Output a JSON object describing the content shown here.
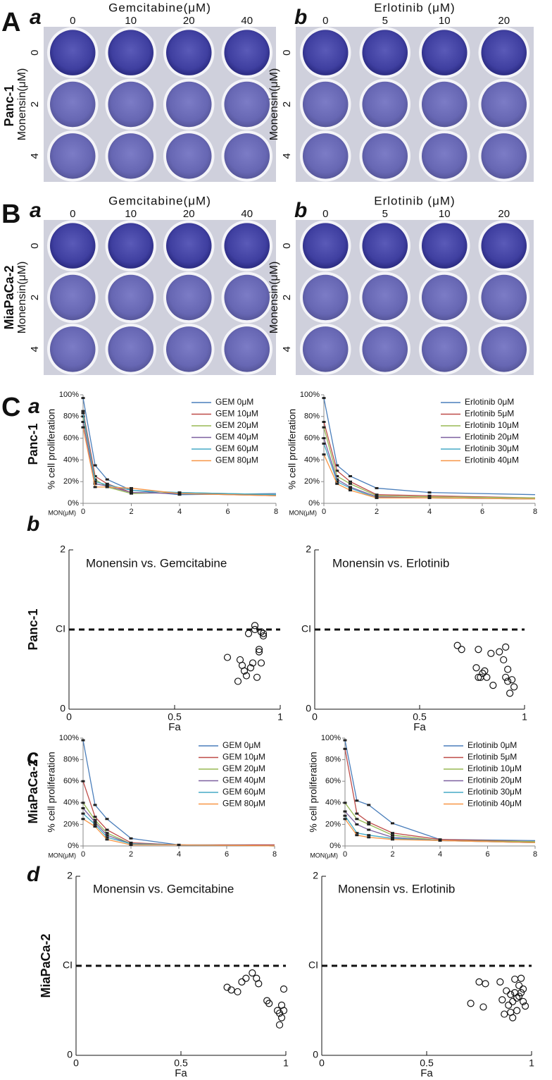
{
  "panel_labels": [
    "A",
    "a",
    "b",
    "B",
    "a",
    "b",
    "C",
    "a",
    "b",
    "c",
    "d"
  ],
  "cell_lines": [
    "Panc-1",
    "MiaPaCa-2",
    "Panc-1",
    "Panc-1",
    "MiaPaCa-2",
    "MiaPaCa-2"
  ],
  "plates": [
    {
      "title": "Gemcitabine(μM)",
      "columns": [
        "0",
        "10",
        "20",
        "40"
      ],
      "row_label": "Monensin(μM)",
      "rows": [
        "0",
        "2",
        "4"
      ]
    },
    {
      "title": "Erlotinib (μM)",
      "columns": [
        "0",
        "5",
        "10",
        "20"
      ],
      "row_label": "Monensin(μM)",
      "rows": [
        "0",
        "2",
        "4"
      ]
    },
    {
      "title": "Gemcitabine(μM)",
      "columns": [
        "0",
        "10",
        "20",
        "40"
      ],
      "row_label": "Monensin(μM)",
      "rows": [
        "0",
        "2",
        "4"
      ]
    },
    {
      "title": "Erlotinib (μM)",
      "columns": [
        "0",
        "5",
        "10",
        "20"
      ],
      "row_label": "Monensin(μM)",
      "rows": [
        "0",
        "2",
        "4"
      ]
    }
  ],
  "chart_data": [
    {
      "type": "line",
      "ylabel": "% cell proliferation",
      "xlabel": "MON(μM)",
      "x": [
        0,
        0.5,
        1,
        2,
        4,
        8
      ],
      "xlim": [
        0,
        8
      ],
      "xticks": [
        0,
        2,
        4,
        6,
        8
      ],
      "ylim": [
        0,
        100
      ],
      "yticks": [
        {
          "value": 0,
          "label": "0%"
        },
        {
          "value": 20,
          "label": "20%"
        },
        {
          "value": 40,
          "label": "40%"
        },
        {
          "value": 60,
          "label": "60%"
        },
        {
          "value": 80,
          "label": "80%"
        },
        {
          "value": 100,
          "label": "100%"
        }
      ],
      "series": [
        {
          "name": "GEM 0μM",
          "color": "#4a7ebb",
          "values": [
            97,
            35,
            22,
            12,
            8,
            9
          ]
        },
        {
          "name": "GEM 10μM",
          "color": "#be4b48",
          "values": [
            85,
            25,
            18,
            10,
            9,
            8
          ]
        },
        {
          "name": "GEM 20μM",
          "color": "#98b954",
          "values": [
            80,
            22,
            15,
            9,
            10,
            8
          ]
        },
        {
          "name": "GEM 40μM",
          "color": "#7d60a0",
          "values": [
            75,
            18,
            16,
            10,
            9,
            7
          ]
        },
        {
          "name": "GEM 60μM",
          "color": "#46aac5",
          "values": [
            83,
            20,
            17,
            12,
            10,
            8
          ]
        },
        {
          "name": "GEM 80μM",
          "color": "#f79646",
          "values": [
            70,
            15,
            15,
            14,
            9,
            7
          ]
        }
      ]
    },
    {
      "type": "line",
      "ylabel": "% cell proliferation",
      "xlabel": "MON(μM)",
      "x": [
        0,
        0.5,
        1,
        2,
        4,
        8
      ],
      "xlim": [
        0,
        8
      ],
      "xticks": [
        0,
        2,
        4,
        6,
        8
      ],
      "ylim": [
        0,
        100
      ],
      "yticks": [
        {
          "value": 0,
          "label": "0%"
        },
        {
          "value": 20,
          "label": "20%"
        },
        {
          "value": 40,
          "label": "40%"
        },
        {
          "value": 60,
          "label": "60%"
        },
        {
          "value": 80,
          "label": "80%"
        },
        {
          "value": 100,
          "label": "100%"
        }
      ],
      "series": [
        {
          "name": "Erlotinib 0μM",
          "color": "#4a7ebb",
          "values": [
            97,
            35,
            25,
            14,
            10,
            8
          ]
        },
        {
          "name": "Erlotinib 5μM",
          "color": "#be4b48",
          "values": [
            75,
            30,
            20,
            8,
            7,
            5
          ]
        },
        {
          "name": "Erlotinib 10μM",
          "color": "#98b954",
          "values": [
            70,
            25,
            18,
            7,
            6,
            5
          ]
        },
        {
          "name": "Erlotinib 20μM",
          "color": "#7d60a0",
          "values": [
            60,
            22,
            15,
            6,
            5,
            4
          ]
        },
        {
          "name": "Erlotinib 30μM",
          "color": "#46aac5",
          "values": [
            55,
            20,
            14,
            5,
            5,
            4
          ]
        },
        {
          "name": "Erlotinib 40μM",
          "color": "#f79646",
          "values": [
            45,
            18,
            12,
            5,
            5,
            4
          ]
        }
      ]
    },
    {
      "type": "scatter",
      "title": "Monensin vs. Gemcitabine",
      "xlabel": "Fa",
      "xlim": [
        0,
        1
      ],
      "xticks": [
        0,
        0.5,
        1
      ],
      "ylim": [
        0,
        2
      ],
      "yticks": [
        0,
        {
          "value": 1,
          "label": "CI"
        },
        2
      ],
      "hline": 1,
      "x": [
        0.75,
        0.8,
        0.81,
        0.82,
        0.83,
        0.84,
        0.85,
        0.86,
        0.87,
        0.88,
        0.88,
        0.89,
        0.9,
        0.9,
        0.91,
        0.91,
        0.92,
        0.92
      ],
      "values": [
        0.65,
        0.35,
        0.62,
        0.55,
        0.48,
        0.42,
        0.95,
        0.52,
        0.58,
        1.05,
        1.0,
        0.4,
        0.72,
        0.75,
        0.58,
        0.97,
        0.92,
        0.95
      ]
    },
    {
      "type": "scatter",
      "title": "Monensin vs. Erlotinib",
      "xlabel": "Fa",
      "xlim": [
        0,
        1
      ],
      "xticks": [
        0,
        0.5,
        1
      ],
      "ylim": [
        0,
        2
      ],
      "yticks": [
        0,
        {
          "value": 1,
          "label": "CI"
        },
        2
      ],
      "hline": 1,
      "x": [
        0.68,
        0.7,
        0.77,
        0.78,
        0.78,
        0.79,
        0.8,
        0.81,
        0.82,
        0.84,
        0.85,
        0.88,
        0.9,
        0.91,
        0.91,
        0.92,
        0.92,
        0.93,
        0.94,
        0.95
      ],
      "values": [
        0.8,
        0.75,
        0.52,
        0.4,
        0.75,
        0.4,
        0.45,
        0.48,
        0.4,
        0.7,
        0.3,
        0.72,
        0.62,
        0.4,
        0.78,
        0.35,
        0.5,
        0.2,
        0.37,
        0.28
      ]
    },
    {
      "type": "line",
      "ylabel": "% cell proliferation",
      "xlabel": "MON(μM)",
      "x": [
        0,
        0.5,
        1,
        2,
        4,
        8
      ],
      "xlim": [
        0,
        8
      ],
      "xticks": [
        0,
        2,
        4,
        6,
        8
      ],
      "ylim": [
        0,
        100
      ],
      "yticks": [
        {
          "value": 0,
          "label": "0%"
        },
        {
          "value": 20,
          "label": "20%"
        },
        {
          "value": 40,
          "label": "40%"
        },
        {
          "value": 60,
          "label": "60%"
        },
        {
          "value": 80,
          "label": "80%"
        },
        {
          "value": 100,
          "label": "100%"
        }
      ],
      "series": [
        {
          "name": "GEM 0μM",
          "color": "#4a7ebb",
          "values": [
            98,
            38,
            25,
            7,
            1,
            1
          ]
        },
        {
          "name": "GEM 10μM",
          "color": "#be4b48",
          "values": [
            60,
            27,
            15,
            3,
            1,
            1
          ]
        },
        {
          "name": "GEM 20μM",
          "color": "#98b954",
          "values": [
            40,
            24,
            12,
            2,
            1,
            0
          ]
        },
        {
          "name": "GEM 40μM",
          "color": "#7d60a0",
          "values": [
            35,
            22,
            10,
            2,
            1,
            0
          ]
        },
        {
          "name": "GEM 60μM",
          "color": "#46aac5",
          "values": [
            30,
            20,
            8,
            2,
            1,
            0
          ]
        },
        {
          "name": "GEM 80μM",
          "color": "#f79646",
          "values": [
            25,
            18,
            6,
            1,
            1,
            0
          ]
        }
      ]
    },
    {
      "type": "line",
      "ylabel": "% cell proliferation",
      "xlabel": "MON(μM)",
      "x": [
        0,
        0.5,
        1,
        2,
        4,
        8
      ],
      "xlim": [
        0,
        8
      ],
      "xticks": [
        0,
        2,
        4,
        6,
        8
      ],
      "ylim": [
        0,
        100
      ],
      "yticks": [
        {
          "value": 0,
          "label": "0%"
        },
        {
          "value": 20,
          "label": "20%"
        },
        {
          "value": 40,
          "label": "40%"
        },
        {
          "value": 60,
          "label": "60%"
        },
        {
          "value": 80,
          "label": "80%"
        },
        {
          "value": 100,
          "label": "100%"
        }
      ],
      "series": [
        {
          "name": "Erlotinib 0μM",
          "color": "#4a7ebb",
          "values": [
            98,
            42,
            38,
            21,
            6,
            5
          ]
        },
        {
          "name": "Erlotinib 5μM",
          "color": "#be4b48",
          "values": [
            90,
            30,
            22,
            12,
            6,
            4
          ]
        },
        {
          "name": "Erlotinib 10μM",
          "color": "#98b954",
          "values": [
            40,
            25,
            20,
            10,
            5,
            4
          ]
        },
        {
          "name": "Erlotinib 20μM",
          "color": "#7d60a0",
          "values": [
            32,
            20,
            15,
            8,
            5,
            3
          ]
        },
        {
          "name": "Erlotinib 30μM",
          "color": "#46aac5",
          "values": [
            28,
            12,
            10,
            7,
            5,
            3
          ]
        },
        {
          "name": "Erlotinib 40μM",
          "color": "#f79646",
          "values": [
            25,
            10,
            8,
            6,
            5,
            3
          ]
        }
      ]
    },
    {
      "type": "scatter",
      "title": "Monensin vs. Gemcitabine",
      "xlabel": "Fa",
      "xlim": [
        0,
        1
      ],
      "xticks": [
        0,
        0.5,
        1
      ],
      "ylim": [
        0,
        2
      ],
      "yticks": [
        0,
        {
          "value": 1,
          "label": "CI"
        },
        2
      ],
      "hline": 1,
      "x": [
        0.72,
        0.74,
        0.77,
        0.79,
        0.81,
        0.84,
        0.86,
        0.87,
        0.91,
        0.92,
        0.96,
        0.97,
        0.97,
        0.98,
        0.98,
        0.99,
        0.99
      ],
      "values": [
        0.76,
        0.73,
        0.71,
        0.82,
        0.86,
        0.92,
        0.86,
        0.8,
        0.61,
        0.58,
        0.5,
        0.47,
        0.34,
        0.42,
        0.56,
        0.74,
        0.5
      ]
    },
    {
      "type": "scatter",
      "title": "Monensin vs. Erlotinib",
      "xlabel": "Fa",
      "xlim": [
        0,
        1
      ],
      "xticks": [
        0,
        0.5,
        1
      ],
      "ylim": [
        0,
        2
      ],
      "yticks": [
        0,
        {
          "value": 1,
          "label": "CI"
        },
        2
      ],
      "hline": 1,
      "x": [
        0.71,
        0.75,
        0.77,
        0.78,
        0.85,
        0.86,
        0.87,
        0.88,
        0.89,
        0.9,
        0.9,
        0.91,
        0.91,
        0.92,
        0.92,
        0.93,
        0.93,
        0.94,
        0.94,
        0.95,
        0.95,
        0.96,
        0.96,
        0.97
      ],
      "values": [
        0.58,
        0.82,
        0.54,
        0.8,
        0.82,
        0.62,
        0.46,
        0.72,
        0.56,
        0.68,
        0.48,
        0.6,
        0.42,
        0.7,
        0.85,
        0.64,
        0.5,
        0.66,
        0.78,
        0.7,
        0.86,
        0.6,
        0.74,
        0.55
      ]
    }
  ]
}
